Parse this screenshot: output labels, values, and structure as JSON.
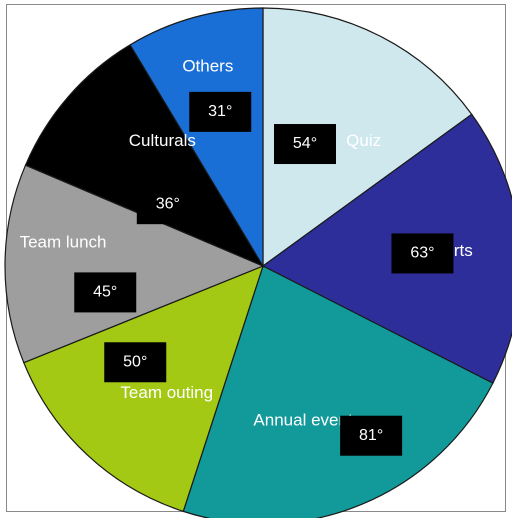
{
  "chart_data": {
    "type": "pie",
    "unit": "°",
    "slices": [
      {
        "label": "Quiz",
        "value": 54,
        "value_label": "54°",
        "color": "#cfe8ee"
      },
      {
        "label": "Sports",
        "value": 63,
        "value_label": "63°",
        "color": "#2e2e9a"
      },
      {
        "label": "Annual event",
        "value": 81,
        "value_label": "81°",
        "color": "#12999a"
      },
      {
        "label": "Team outing",
        "value": 50,
        "value_label": "50°",
        "color": "#a3c914"
      },
      {
        "label": "Team lunch",
        "value": 45,
        "value_label": "45°",
        "color": "#9e9e9e"
      },
      {
        "label": "Culturals",
        "value": 36,
        "value_label": "36°",
        "color": "#000000"
      },
      {
        "label": "Others",
        "value": 31,
        "value_label": "31°",
        "color": "#1a6fd6"
      }
    ],
    "label_text_colors": [
      "#ffffff",
      "#ffffff",
      "#ffffff",
      "#ffffff",
      "#ffffff",
      "#ffffff",
      "#ffffff"
    ],
    "value_box_color": "#000000"
  }
}
